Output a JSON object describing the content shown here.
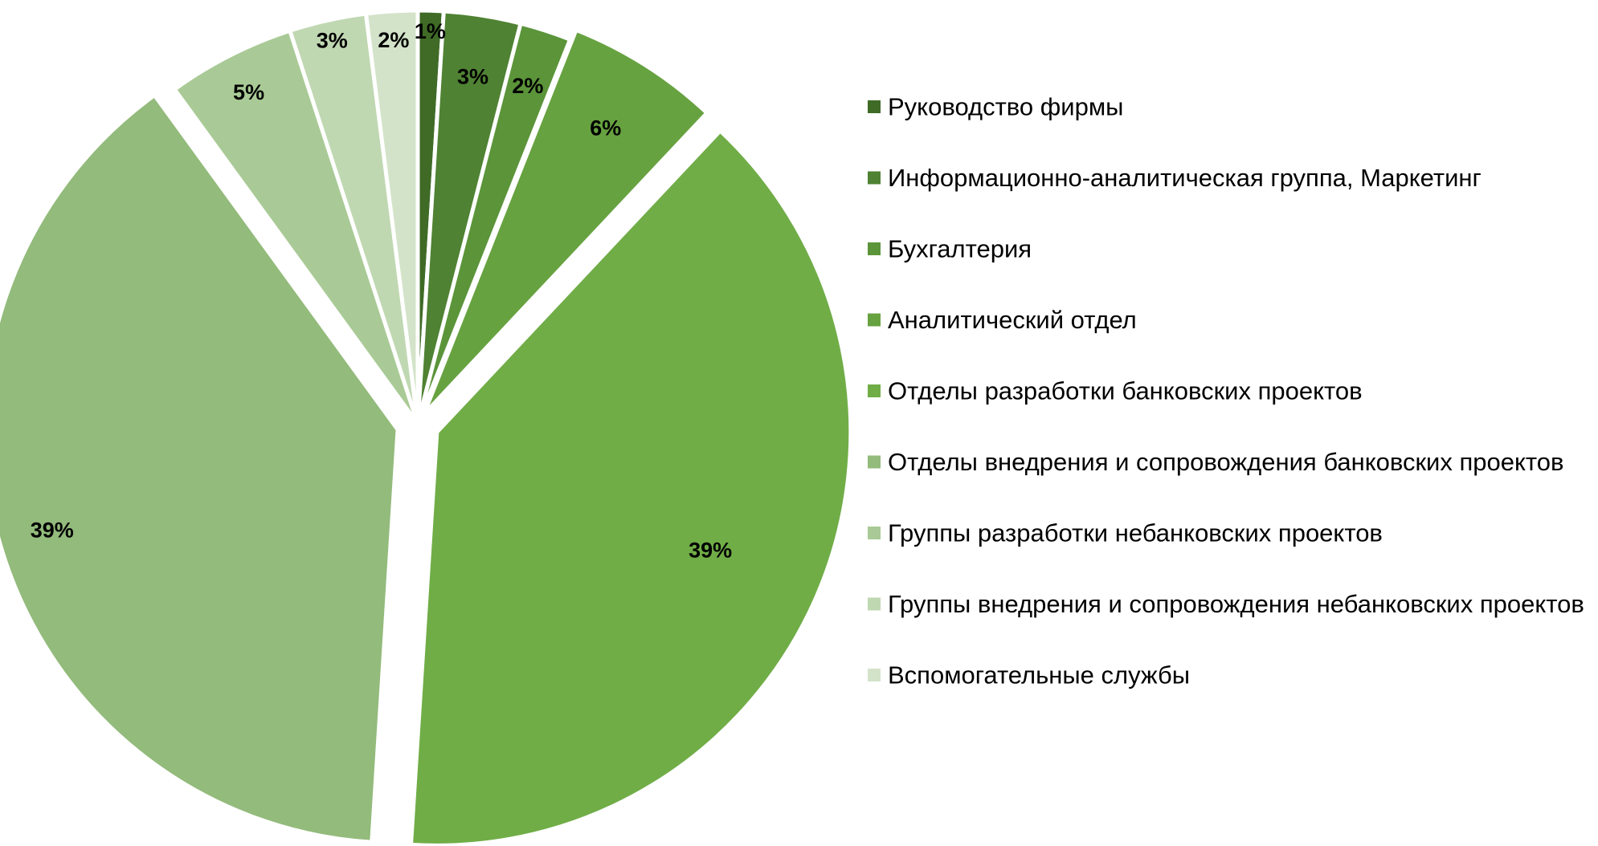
{
  "chart_data": {
    "type": "pie",
    "title": "",
    "legend_position": "right",
    "slices": [
      {
        "name": "Руководство фирмы",
        "value": 1,
        "label": "1%",
        "color": "#3f6b27"
      },
      {
        "name": "Информационно-аналитическая группа, Маркетинг",
        "value": 3,
        "label": "3%",
        "color": "#4f8233"
      },
      {
        "name": "Бухгалтерия",
        "value": 2,
        "label": "2%",
        "color": "#5b9439"
      },
      {
        "name": "Аналитический отдел",
        "value": 6,
        "label": "6%",
        "color": "#67a240"
      },
      {
        "name": "Отделы разработки банковских проектов",
        "value": 39,
        "label": "39%",
        "color": "#70ad47"
      },
      {
        "name": "Отделы внедрения и сопровождения банковских проектов",
        "value": 39,
        "label": "39%",
        "color": "#93bb7c"
      },
      {
        "name": "Группы разработки небанковских проектов",
        "value": 5,
        "label": "5%",
        "color": "#a9ca96"
      },
      {
        "name": "Группы внедрения и сопровождения небанковских проектов",
        "value": 3,
        "label": "3%",
        "color": "#c0d8b2"
      },
      {
        "name": "Вспомогательные службы",
        "value": 2,
        "label": "2%",
        "color": "#d3e3c9"
      }
    ]
  }
}
